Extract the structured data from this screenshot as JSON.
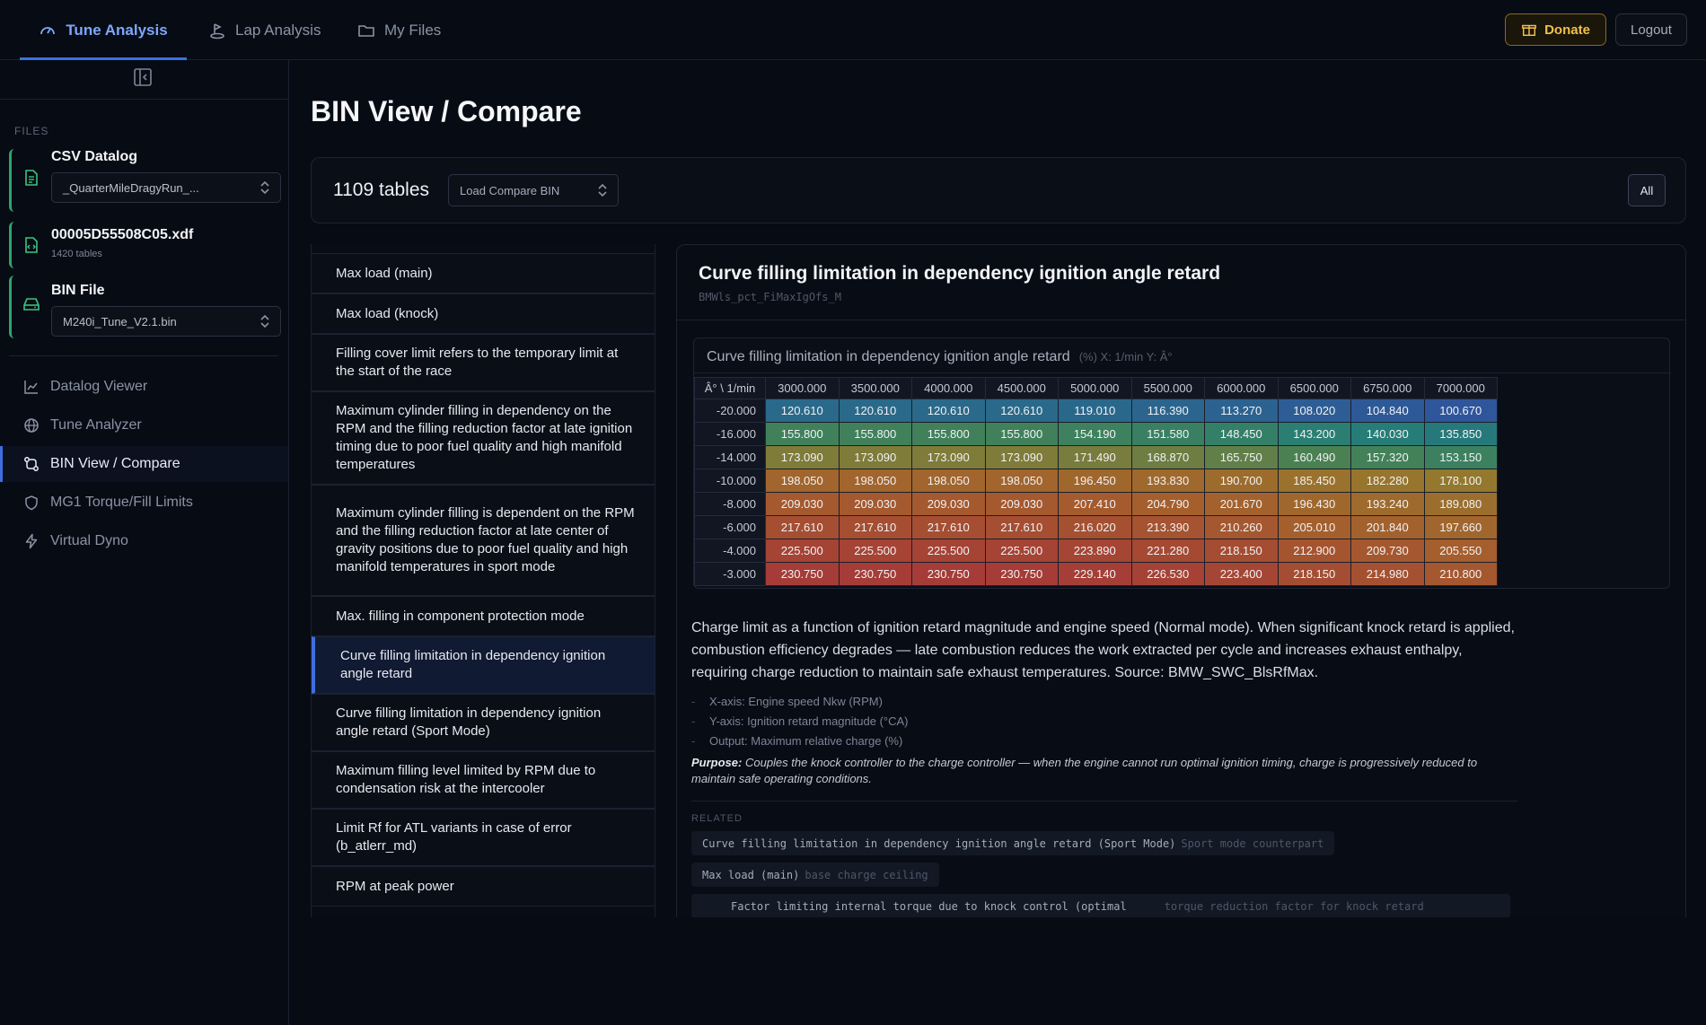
{
  "nav": {
    "tabs": [
      {
        "label": "Tune Analysis",
        "icon": "gauge-icon"
      },
      {
        "label": "Lap Analysis",
        "icon": "flag-icon"
      },
      {
        "label": "My Files",
        "icon": "folder-icon"
      }
    ],
    "donate_label": "Donate",
    "logout_label": "Logout"
  },
  "sidebar": {
    "files_label": "FILES",
    "files": [
      {
        "title": "CSV Datalog",
        "select_value": "_QuarterMileDragyRun_...",
        "icon": "file-text-icon"
      },
      {
        "title": "00005D55508C05.xdf",
        "subtitle": "1420 tables",
        "icon": "file-code-icon"
      },
      {
        "title": "BIN File",
        "select_value": "M240i_Tune_V2.1.bin",
        "icon": "drive-icon"
      }
    ],
    "items": [
      {
        "label": "Datalog Viewer",
        "icon": "line-chart-icon"
      },
      {
        "label": "Tune Analyzer",
        "icon": "globe-icon"
      },
      {
        "label": "BIN View / Compare",
        "icon": "compare-icon"
      },
      {
        "label": "MG1 Torque/Fill Limits",
        "icon": "shield-icon"
      },
      {
        "label": "Virtual Dyno",
        "icon": "lightning-icon"
      }
    ]
  },
  "main": {
    "title": "BIN View / Compare",
    "table_count": "1109 tables",
    "compare_select": "Load Compare BIN",
    "all_label": "All"
  },
  "table_list": [
    "Max load (main)",
    "Max load (knock)",
    "Filling cover limit refers to the temporary limit at the start of the race",
    "Maximum cylinder filling in dependency on the RPM and the filling reduction factor at late ignition timing due to poor fuel quality and high manifold temperatures",
    "Maximum cylinder filling is dependent on the RPM and the filling reduction factor at late center of gravity positions due to poor fuel quality and high manifold temperatures in sport mode",
    "Max. filling in component protection mode",
    "Curve filling limitation in dependency ignition angle retard",
    "Curve filling limitation in dependency ignition angle retard (Sport Mode)",
    "Maximum filling level limited by RPM due to condensation risk at the intercooler",
    "Limit Rf for ATL variants in case of error (b_atlerr_md)",
    "RPM at peak power"
  ],
  "detail": {
    "title": "Curve filling limitation in dependency ignition angle retard",
    "code": "BMWls_pct_FiMaxIgOfs_M",
    "map_title": "Curve filling limitation in dependency ignition angle retard",
    "map_unit": "(%) X: 1/min Y: Â°",
    "corner_label": "Â° \\ 1/min",
    "description": "Charge limit as a function of ignition retard magnitude and engine speed (Normal mode). When significant knock retard is applied, combustion efficiency degrades — late combustion reduces the work extracted per cycle and increases exhaust enthalpy, requiring charge reduction to maintain safe exhaust temperatures. Source: BMW_SWC_BlsRfMax.",
    "bullets": [
      "X-axis: Engine speed Nkw (RPM)",
      "Y-axis: Ignition retard magnitude (°CA)",
      "Output: Maximum relative charge (%)"
    ],
    "purpose_label": "Purpose:",
    "purpose_text": "Couples the knock controller to the charge controller — when the engine cannot run optimal ignition timing, charge is progressively reduced to maintain safe operating conditions.",
    "related_label": "RELATED",
    "related": [
      {
        "name": "Curve filling limitation in dependency ignition angle retard (Sport Mode)",
        "desc": "Sport mode counterpart"
      },
      {
        "name": "Max load (main)",
        "desc": "base charge ceiling"
      },
      {
        "name": "Factor limiting internal torque due to knock control (optimal",
        "desc": "torque reduction factor for knock retard"
      }
    ]
  },
  "chart_data": {
    "type": "heatmap",
    "title": "Curve filling limitation in dependency ignition angle retard",
    "x": [
      "3000.000",
      "3500.000",
      "4000.000",
      "4500.000",
      "5000.000",
      "5500.000",
      "6000.000",
      "6500.000",
      "6750.000",
      "7000.000"
    ],
    "y": [
      "-20.000",
      "-16.000",
      "-14.000",
      "-10.000",
      "-8.000",
      "-6.000",
      "-4.000",
      "-3.000"
    ],
    "values": [
      [
        "120.610",
        "120.610",
        "120.610",
        "120.610",
        "119.010",
        "116.390",
        "113.270",
        "108.020",
        "104.840",
        "100.670"
      ],
      [
        "155.800",
        "155.800",
        "155.800",
        "155.800",
        "154.190",
        "151.580",
        "148.450",
        "143.200",
        "140.030",
        "135.850"
      ],
      [
        "173.090",
        "173.090",
        "173.090",
        "173.090",
        "171.490",
        "168.870",
        "165.750",
        "160.490",
        "157.320",
        "153.150"
      ],
      [
        "198.050",
        "198.050",
        "198.050",
        "198.050",
        "196.450",
        "193.830",
        "190.700",
        "185.450",
        "182.280",
        "178.100"
      ],
      [
        "209.030",
        "209.030",
        "209.030",
        "209.030",
        "207.410",
        "204.790",
        "201.670",
        "196.430",
        "193.240",
        "189.080"
      ],
      [
        "217.610",
        "217.610",
        "217.610",
        "217.610",
        "216.020",
        "213.390",
        "210.260",
        "205.010",
        "201.840",
        "197.660"
      ],
      [
        "225.500",
        "225.500",
        "225.500",
        "225.500",
        "223.890",
        "221.280",
        "218.150",
        "212.900",
        "209.730",
        "205.550"
      ],
      [
        "230.750",
        "230.750",
        "230.750",
        "230.750",
        "229.140",
        "226.530",
        "223.400",
        "218.150",
        "214.980",
        "210.800"
      ]
    ]
  }
}
